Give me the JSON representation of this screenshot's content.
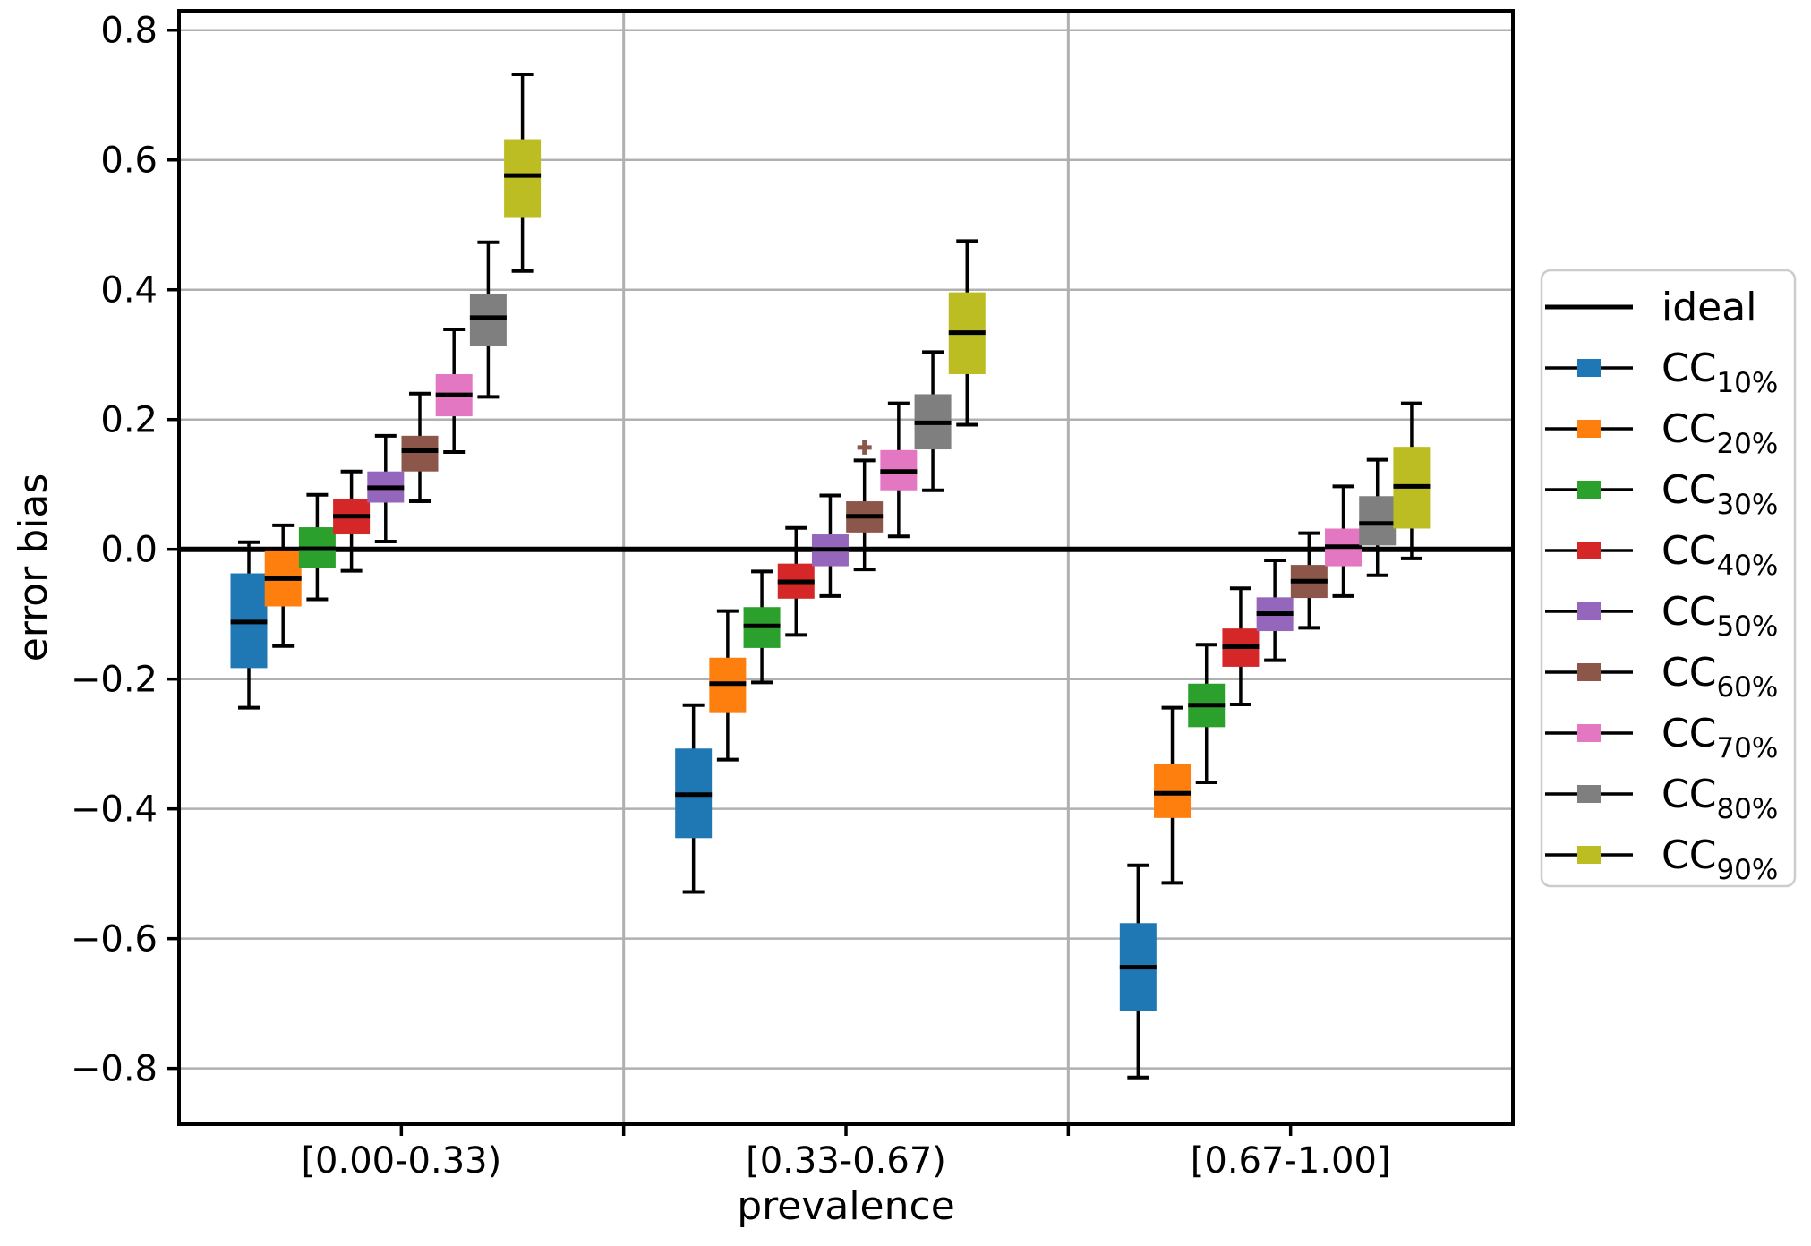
{
  "figure": {
    "background": "#ffffff",
    "axis_color": "#000000",
    "grid_color": "#b0b0b0",
    "legend_border_color": "#cccccc",
    "ylabel": "error bias",
    "xlabel": "prevalence"
  },
  "chart_data": {
    "type": "boxplot",
    "title": "",
    "xlabel": "prevalence",
    "ylabel": "error bias",
    "ylim": [
      -0.886,
      0.83
    ],
    "yticks": [
      0.8,
      0.6,
      0.4,
      0.2,
      0.0,
      -0.2,
      -0.4,
      -0.6,
      -0.8
    ],
    "grid": true,
    "legend_position": "right",
    "categories": [
      "[0.00-0.33)",
      "[0.33-0.67)",
      "[0.67-1.00]"
    ],
    "reference_line": {
      "label": "ideal",
      "value": 0.0,
      "color": "#000000"
    },
    "legend_ideal_label": "ideal",
    "series": [
      {
        "label": "CC",
        "sub": "10%",
        "color": "#1f77b4",
        "boxes": [
          {
            "whislo": -0.244,
            "q1": -0.183,
            "med": -0.112,
            "q3": -0.037,
            "whishi": 0.011,
            "fliers": []
          },
          {
            "whislo": -0.528,
            "q1": -0.445,
            "med": -0.378,
            "q3": -0.307,
            "whishi": -0.24,
            "fliers": []
          },
          {
            "whislo": -0.814,
            "q1": -0.712,
            "med": -0.644,
            "q3": -0.576,
            "whishi": -0.487,
            "fliers": []
          }
        ]
      },
      {
        "label": "CC",
        "sub": "20%",
        "color": "#ff7f0e",
        "boxes": [
          {
            "whislo": -0.149,
            "q1": -0.088,
            "med": -0.045,
            "q3": -0.003,
            "whishi": 0.037,
            "fliers": []
          },
          {
            "whislo": -0.324,
            "q1": -0.251,
            "med": -0.207,
            "q3": -0.167,
            "whishi": -0.095,
            "fliers": []
          },
          {
            "whislo": -0.514,
            "q1": -0.414,
            "med": -0.376,
            "q3": -0.331,
            "whishi": -0.244,
            "fliers": []
          }
        ]
      },
      {
        "label": "CC",
        "sub": "30%",
        "color": "#2ca02c",
        "boxes": [
          {
            "whislo": -0.077,
            "q1": -0.029,
            "med": 0.001,
            "q3": 0.034,
            "whishi": 0.084,
            "fliers": []
          },
          {
            "whislo": -0.205,
            "q1": -0.152,
            "med": -0.118,
            "q3": -0.089,
            "whishi": -0.034,
            "fliers": []
          },
          {
            "whislo": -0.359,
            "q1": -0.274,
            "med": -0.24,
            "q3": -0.207,
            "whishi": -0.147,
            "fliers": []
          }
        ]
      },
      {
        "label": "CC",
        "sub": "40%",
        "color": "#d62728",
        "boxes": [
          {
            "whislo": -0.033,
            "q1": 0.023,
            "med": 0.051,
            "q3": 0.077,
            "whishi": 0.12,
            "fliers": []
          },
          {
            "whislo": -0.132,
            "q1": -0.076,
            "med": -0.05,
            "q3": -0.022,
            "whishi": 0.033,
            "fliers": []
          },
          {
            "whislo": -0.239,
            "q1": -0.181,
            "med": -0.15,
            "q3": -0.122,
            "whishi": -0.06,
            "fliers": []
          }
        ]
      },
      {
        "label": "CC",
        "sub": "50%",
        "color": "#9467bd",
        "boxes": [
          {
            "whislo": 0.012,
            "q1": 0.072,
            "med": 0.095,
            "q3": 0.12,
            "whishi": 0.175,
            "fliers": []
          },
          {
            "whislo": -0.072,
            "q1": -0.026,
            "med": 0.0,
            "q3": 0.023,
            "whishi": 0.083,
            "fliers": []
          },
          {
            "whislo": -0.171,
            "q1": -0.126,
            "med": -0.099,
            "q3": -0.074,
            "whishi": -0.017,
            "fliers": []
          }
        ]
      },
      {
        "label": "CC",
        "sub": "60%",
        "color": "#8c564b",
        "boxes": [
          {
            "whislo": 0.074,
            "q1": 0.12,
            "med": 0.152,
            "q3": 0.175,
            "whishi": 0.24,
            "fliers": []
          },
          {
            "whislo": -0.031,
            "q1": 0.026,
            "med": 0.051,
            "q3": 0.074,
            "whishi": 0.137,
            "fliers": [
              0.157
            ]
          },
          {
            "whislo": -0.121,
            "q1": -0.075,
            "med": -0.049,
            "q3": -0.024,
            "whishi": 0.025,
            "fliers": []
          }
        ]
      },
      {
        "label": "CC",
        "sub": "70%",
        "color": "#e377c2",
        "boxes": [
          {
            "whislo": 0.15,
            "q1": 0.205,
            "med": 0.238,
            "q3": 0.27,
            "whishi": 0.339,
            "fliers": []
          },
          {
            "whislo": 0.02,
            "q1": 0.091,
            "med": 0.12,
            "q3": 0.153,
            "whishi": 0.225,
            "fliers": []
          },
          {
            "whislo": -0.072,
            "q1": -0.026,
            "med": 0.004,
            "q3": 0.032,
            "whishi": 0.097,
            "fliers": []
          }
        ]
      },
      {
        "label": "CC",
        "sub": "80%",
        "color": "#7f7f7f",
        "boxes": [
          {
            "whislo": 0.235,
            "q1": 0.314,
            "med": 0.357,
            "q3": 0.393,
            "whishi": 0.473,
            "fliers": []
          },
          {
            "whislo": 0.091,
            "q1": 0.154,
            "med": 0.195,
            "q3": 0.239,
            "whishi": 0.304,
            "fliers": []
          },
          {
            "whislo": -0.04,
            "q1": 0.006,
            "med": 0.04,
            "q3": 0.082,
            "whishi": 0.138,
            "fliers": []
          }
        ]
      },
      {
        "label": "CC",
        "sub": "90%",
        "color": "#bcbd22",
        "boxes": [
          {
            "whislo": 0.429,
            "q1": 0.512,
            "med": 0.576,
            "q3": 0.632,
            "whishi": 0.732,
            "fliers": []
          },
          {
            "whislo": 0.192,
            "q1": 0.27,
            "med": 0.334,
            "q3": 0.396,
            "whishi": 0.475,
            "fliers": []
          },
          {
            "whislo": -0.014,
            "q1": 0.032,
            "med": 0.097,
            "q3": 0.158,
            "whishi": 0.225,
            "fliers": []
          }
        ]
      }
    ]
  }
}
